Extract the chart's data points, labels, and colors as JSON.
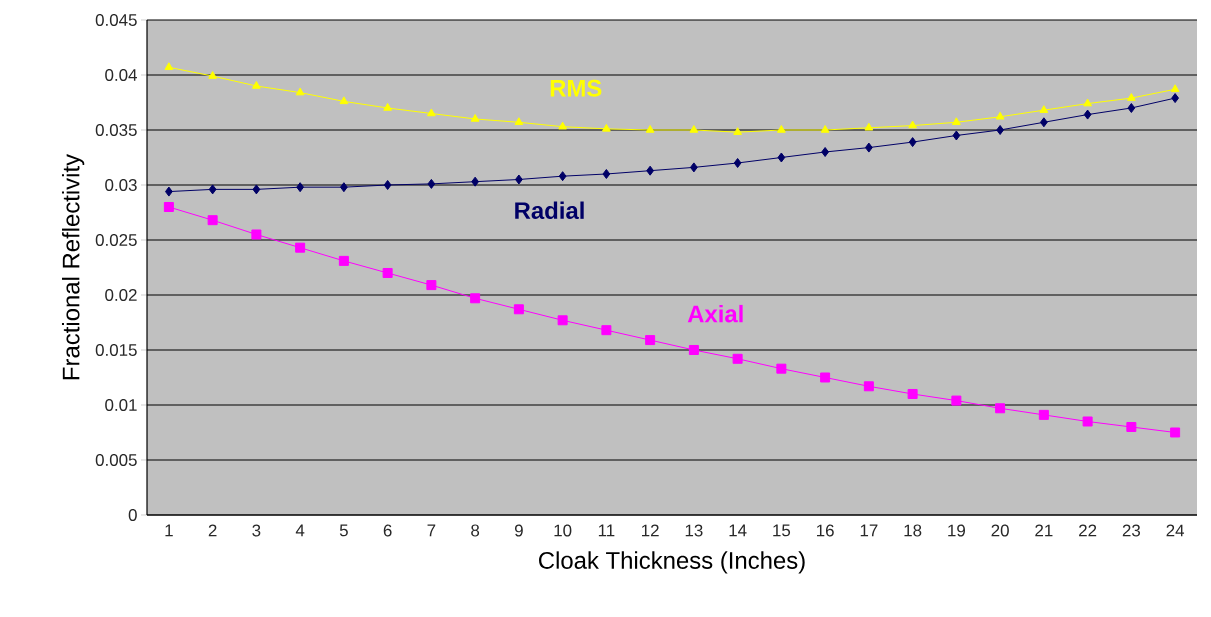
{
  "chart_data": {
    "type": "line",
    "xlabel": "Cloak Thickness (Inches)",
    "ylabel": "Fractional Reflectivity",
    "categories": [
      "1",
      "2",
      "3",
      "4",
      "5",
      "6",
      "7",
      "8",
      "9",
      "10",
      "11",
      "12",
      "13",
      "14",
      "15",
      "16",
      "17",
      "18",
      "19",
      "20",
      "21",
      "22",
      "23",
      "24"
    ],
    "series": [
      {
        "name": "RMS",
        "color": "#ffff00",
        "marker": "triangle",
        "values": [
          0.0407,
          0.0399,
          0.039,
          0.0384,
          0.0376,
          0.037,
          0.0365,
          0.036,
          0.0357,
          0.0353,
          0.0351,
          0.035,
          0.035,
          0.0348,
          0.035,
          0.035,
          0.0352,
          0.0354,
          0.0357,
          0.0362,
          0.0368,
          0.0374,
          0.0379,
          0.0387
        ]
      },
      {
        "name": "Radial",
        "color": "#000066",
        "marker": "diamond",
        "values": [
          0.0294,
          0.0296,
          0.0296,
          0.0298,
          0.0298,
          0.03,
          0.0301,
          0.0303,
          0.0305,
          0.0308,
          0.031,
          0.0313,
          0.0316,
          0.032,
          0.0325,
          0.033,
          0.0334,
          0.0339,
          0.0345,
          0.035,
          0.0357,
          0.0364,
          0.037,
          0.0379
        ]
      },
      {
        "name": "Axial",
        "color": "#ff00ff",
        "marker": "square",
        "values": [
          0.028,
          0.0268,
          0.0255,
          0.0243,
          0.0231,
          0.022,
          0.0209,
          0.0197,
          0.0187,
          0.0177,
          0.0168,
          0.0159,
          0.015,
          0.0142,
          0.0133,
          0.0125,
          0.0117,
          0.011,
          0.0104,
          0.0097,
          0.0091,
          0.0085,
          0.008,
          0.0075
        ]
      }
    ],
    "ylim": [
      0,
      0.045
    ],
    "yticks": [
      0,
      0.005,
      0.01,
      0.015,
      0.02,
      0.025,
      0.03,
      0.035,
      0.04,
      0.045
    ],
    "grid": "y",
    "legend": false
  }
}
